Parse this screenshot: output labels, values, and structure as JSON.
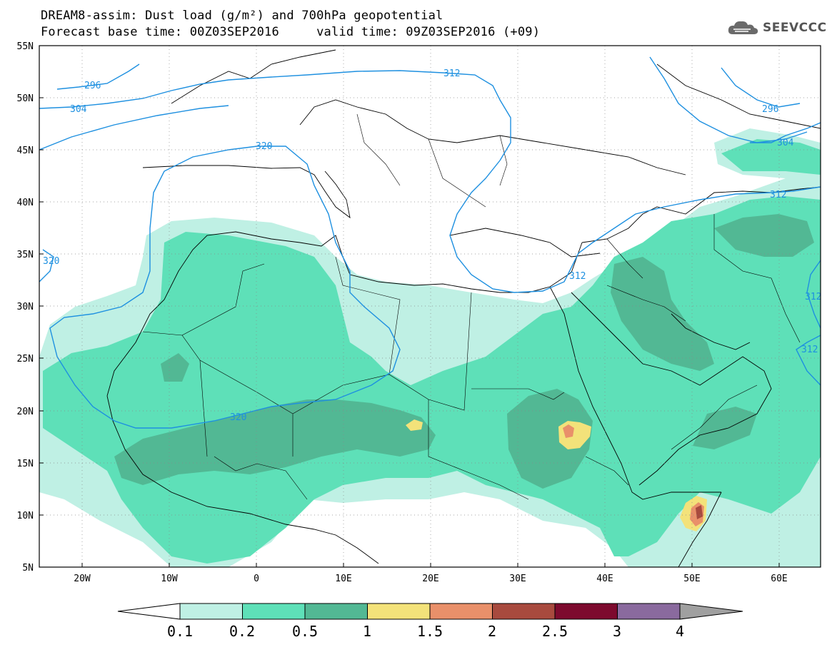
{
  "header": {
    "title_line1": "DREAM8-assim: Dust load (g/m²) and 700hPa geopotential",
    "title_line2": "Forecast base time: 00Z03SEP2016     valid time: 09Z03SEP2016 (+09)",
    "logo_text": "SEEVCCC"
  },
  "map": {
    "lat_labels": [
      "55N",
      "50N",
      "45N",
      "40N",
      "35N",
      "30N",
      "25N",
      "20N",
      "15N",
      "10N",
      "5N"
    ],
    "lon_labels": [
      "20W",
      "10W",
      "0",
      "10E",
      "20E",
      "30E",
      "40E",
      "50E",
      "60E"
    ],
    "contour_labels": [
      "296",
      "304",
      "312",
      "320",
      "320",
      "312",
      "312",
      "296",
      "304",
      "312",
      "312",
      "320"
    ]
  },
  "legend": {
    "tick_labels": [
      "0.1",
      "0.2",
      "0.5",
      "1",
      "1.5",
      "2",
      "2.5",
      "3",
      "4"
    ],
    "colors": [
      "#bff0e4",
      "#5ee0b8",
      "#52b894",
      "#f3e27a",
      "#e9906a",
      "#a84a3e",
      "#7d0a2e",
      "#8a6a9e",
      "#a0a0a0"
    ]
  },
  "colors": {
    "contour": "#1e90e0",
    "land_border": "#000000",
    "dust_level1": "#bff0e4",
    "dust_level2": "#5ee0b8",
    "dust_level3": "#52b894",
    "dust_level4": "#f3e27a",
    "dust_level5": "#e9906a",
    "dust_level6": "#a84a3e",
    "dust_level7": "#7d0a2e"
  }
}
